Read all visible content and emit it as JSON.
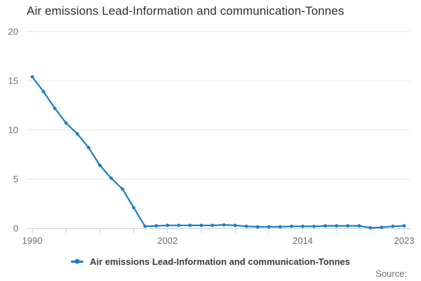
{
  "header": {
    "title": "Air emissions Lead-Information and communication-Tonnes"
  },
  "footer": {
    "source_label": "Source:"
  },
  "chart_data": {
    "type": "line",
    "title": "Air emissions Lead-Information and communication-Tonnes",
    "xlabel": "",
    "ylabel": "",
    "x_range": [
      1990,
      2023
    ],
    "ylim": [
      0,
      20
    ],
    "y_ticks": [
      0,
      5,
      10,
      15,
      20
    ],
    "x_tick_labels": [
      1990,
      2002,
      2014,
      2023
    ],
    "x_minor_tick_step": 3,
    "grid": "horizontal",
    "legend_position": "bottom",
    "series": [
      {
        "name": "Air emissions Lead-Information and communication-Tonnes",
        "x": [
          1990,
          1991,
          1992,
          1993,
          1994,
          1995,
          1996,
          1997,
          1998,
          1999,
          2000,
          2001,
          2002,
          2003,
          2004,
          2005,
          2006,
          2007,
          2008,
          2009,
          2010,
          2011,
          2012,
          2013,
          2014,
          2015,
          2016,
          2017,
          2018,
          2019,
          2020,
          2021,
          2022,
          2023
        ],
        "values": [
          15.4,
          13.9,
          12.2,
          10.7,
          9.6,
          8.2,
          6.4,
          5.1,
          4.0,
          2.1,
          0.2,
          0.25,
          0.3,
          0.3,
          0.3,
          0.3,
          0.3,
          0.35,
          0.3,
          0.2,
          0.15,
          0.15,
          0.15,
          0.2,
          0.2,
          0.2,
          0.25,
          0.25,
          0.25,
          0.25,
          0.05,
          0.1,
          0.2,
          0.25
        ]
      }
    ],
    "colors": {
      "line": "#1b7ec2",
      "grid": "#e4e4e4",
      "axis": "#c9d0d6",
      "tick_label": "#6e6e6e",
      "title_text": "#2e2e2e",
      "legend_text": "#3a3a3a",
      "source_text": "#6e6e6e"
    }
  }
}
